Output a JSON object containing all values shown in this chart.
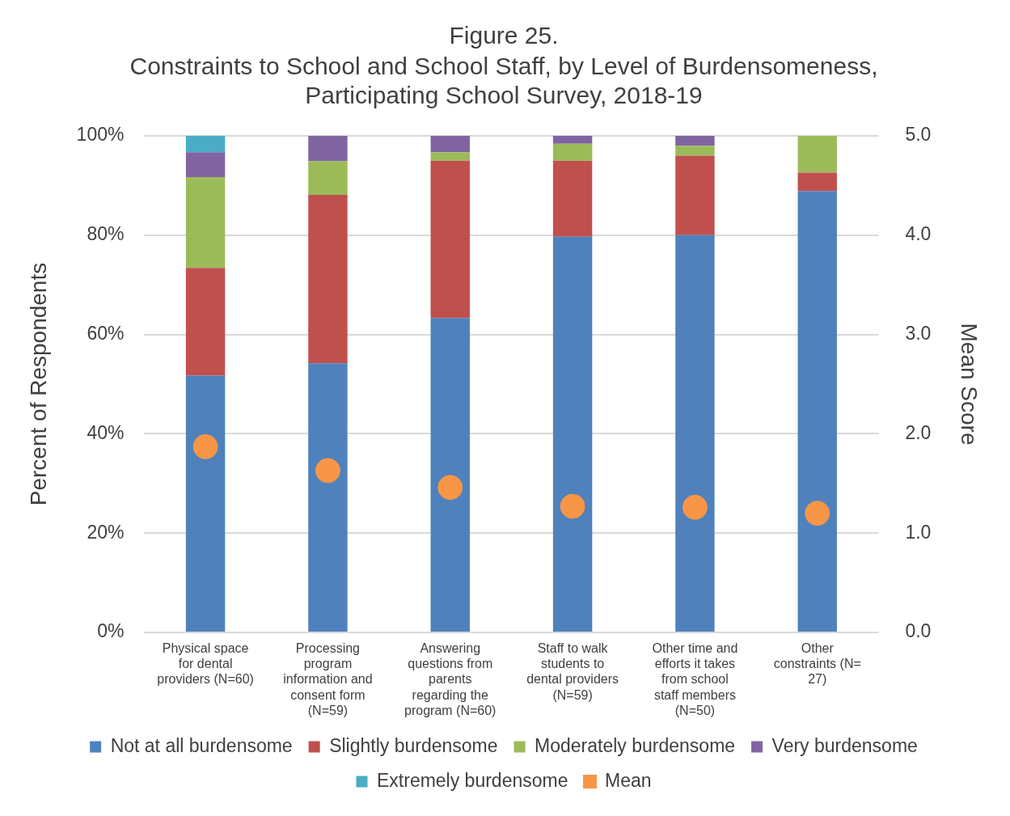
{
  "chart_data": {
    "type": "bar",
    "stacked": true,
    "title": "Figure 25.",
    "subtitle": "Constraints to School and School Staff, by Level of Burdensomeness, Participating School Survey, 2018-19",
    "ylabel": "Percent of Respondents",
    "y2label": "Mean Score",
    "categories": [
      "Physical space for dental providers (N=60)",
      "Processing program information and consent form (N=59)",
      "Answering questions from parents regarding the program (N=60)",
      "Staff to walk students to dental providers (N=59)",
      "Other time and efforts it takes from school staff members (N=50)",
      "Other constraints (N= 27)"
    ],
    "series": [
      {
        "name": "Not at all burdensome",
        "color": "#4f81bd",
        "values": [
          51.7,
          54.2,
          63.3,
          79.7,
          80,
          88.9
        ]
      },
      {
        "name": "Slightly burdensome",
        "color": "#c0504d",
        "values": [
          21.7,
          33.9,
          31.7,
          15.3,
          16,
          3.7
        ]
      },
      {
        "name": "Moderately burdensome",
        "color": "#9bbb59",
        "values": [
          18.3,
          6.8,
          1.7,
          3.4,
          2,
          7.4
        ]
      },
      {
        "name": "Very burdensome",
        "color": "#8064a2",
        "values": [
          5,
          5.1,
          3.3,
          1.7,
          2,
          0
        ]
      },
      {
        "name": "Extremely burdensome",
        "color": "#4bacc6",
        "values": [
          3.3,
          0,
          0,
          0,
          0,
          0
        ]
      },
      {
        "name": "Mean",
        "type": "scatter",
        "axis": "y2",
        "marker": "circle",
        "color": "#f79646",
        "values": [
          1.87,
          1.63,
          1.46,
          1.27,
          1.26,
          1.2
        ]
      }
    ],
    "ylim": [
      0,
      100
    ],
    "yticks": [
      {
        "value": 0,
        "label": "0%"
      },
      {
        "value": 20,
        "label": "20%"
      },
      {
        "value": 40,
        "label": "40%"
      },
      {
        "value": 60,
        "label": "60%"
      },
      {
        "value": 80,
        "label": "80%"
      },
      {
        "value": 100,
        "label": "100%"
      }
    ],
    "y2lim": [
      0,
      5
    ],
    "y2ticks": [
      {
        "value": 0,
        "label": "0.0"
      },
      {
        "value": 1,
        "label": "1.0"
      },
      {
        "value": 2,
        "label": "2.0"
      },
      {
        "value": 3,
        "label": "3.0"
      },
      {
        "value": 4,
        "label": "4.0"
      },
      {
        "value": 5,
        "label": "5.0"
      }
    ],
    "grid": "y",
    "legend": "bottom"
  }
}
